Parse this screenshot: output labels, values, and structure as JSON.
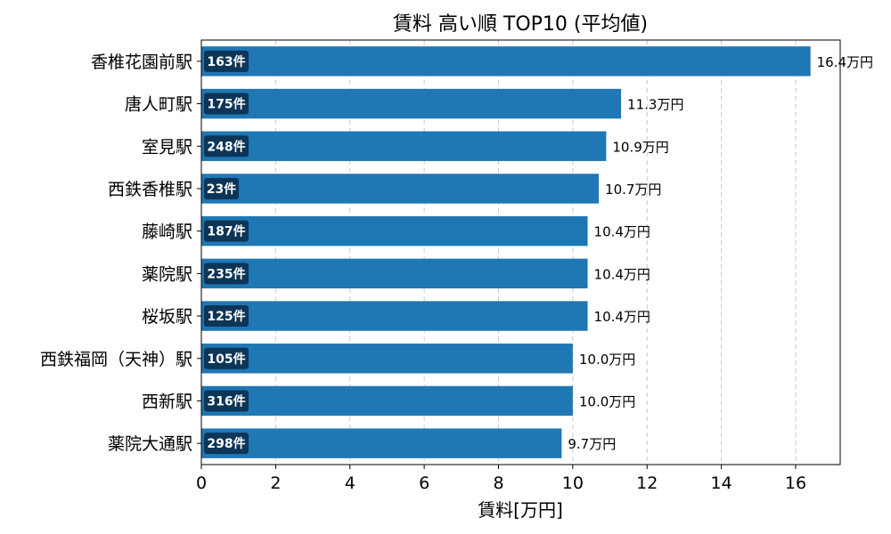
{
  "chart_data": {
    "type": "bar",
    "orientation": "horizontal",
    "title": "賃料 高い順 TOP10 (平均値)",
    "xlabel": "賃料[万円]",
    "ylabel": "",
    "xlim": [
      0,
      17.2
    ],
    "xticks": [
      0,
      2,
      4,
      6,
      8,
      10,
      12,
      14,
      16
    ],
    "grid": "x-dashed",
    "color": "#1f77b4",
    "badge_color": "#0d3557",
    "categories": [
      "香椎花園前駅",
      "唐人町駅",
      "室見駅",
      "西鉄香椎駅",
      "藤崎駅",
      "薬院駅",
      "桜坂駅",
      "西鉄福岡（天神）駅",
      "西新駅",
      "薬院大通駅"
    ],
    "values": [
      16.4,
      11.3,
      10.9,
      10.7,
      10.4,
      10.4,
      10.4,
      10.0,
      10.0,
      9.7
    ],
    "value_labels": [
      "16.4万円",
      "11.3万円",
      "10.9万円",
      "10.7万円",
      "10.4万円",
      "10.4万円",
      "10.4万円",
      "10.0万円",
      "10.0万円",
      "9.7万円"
    ],
    "counts": [
      "163件",
      "175件",
      "248件",
      "23件",
      "187件",
      "235件",
      "125件",
      "105件",
      "316件",
      "298件"
    ]
  }
}
